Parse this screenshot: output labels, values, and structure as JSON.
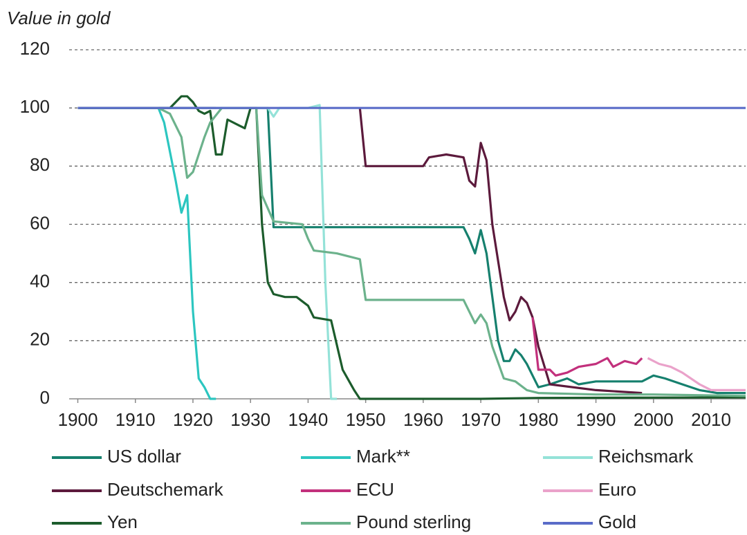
{
  "chart_data": {
    "type": "line",
    "y_label": "Value in gold",
    "xlim": [
      1898.5,
      2016
    ],
    "xticks": [
      1900,
      1910,
      1920,
      1930,
      1940,
      1950,
      1960,
      1970,
      1980,
      1990,
      2000,
      2010
    ],
    "ylim": [
      0,
      120
    ],
    "yticks": [
      0,
      20,
      40,
      60,
      80,
      100,
      120
    ],
    "grid": true,
    "series": [
      {
        "name": "US dollar",
        "color": "#16806e",
        "x": [
          1900,
          1933,
          1934,
          1967,
          1968,
          1969,
          1970,
          1971,
          1972,
          1973,
          1974,
          1975,
          1976,
          1977,
          1978,
          1979,
          1980,
          1982,
          1985,
          1987,
          1990,
          1995,
          1998,
          2000,
          2002,
          2005,
          2008,
          2011,
          2016
        ],
        "values": [
          100,
          100,
          59,
          59,
          55,
          50,
          58,
          50,
          35,
          20,
          13,
          13,
          17,
          15,
          12,
          8,
          4,
          5,
          7,
          5,
          6,
          6,
          6,
          8,
          7,
          5,
          3,
          2,
          2
        ]
      },
      {
        "name": "Mark**",
        "color": "#2cc6c0",
        "x": [
          1900,
          1914,
          1915,
          1917,
          1918,
          1919,
          1920,
          1921,
          1922,
          1923,
          1924
        ],
        "values": [
          100,
          100,
          95,
          75,
          64,
          70,
          30,
          7,
          4,
          0,
          0
        ]
      },
      {
        "name": "Reichsmark",
        "color": "#94e2d8",
        "x": [
          1924,
          1933,
          1934,
          1935,
          1940,
          1942,
          1943,
          1944,
          1945
        ],
        "values": [
          100,
          100,
          97,
          100,
          100,
          101,
          40,
          0,
          0
        ]
      },
      {
        "name": "Deutschemark",
        "color": "#5c1a3c",
        "x": [
          1949,
          1950,
          1960,
          1961,
          1964,
          1967,
          1968,
          1969,
          1970,
          1971,
          1972,
          1974,
          1975,
          1976,
          1977,
          1978,
          1979,
          1980,
          1982,
          1990,
          1998
        ],
        "values": [
          100,
          80,
          80,
          83,
          84,
          83,
          75,
          73,
          88,
          82,
          60,
          35,
          27,
          30,
          35,
          33,
          28,
          18,
          5,
          3,
          2
        ]
      },
      {
        "name": "ECU",
        "color": "#c2307c",
        "x": [
          1979,
          1980,
          1982,
          1983,
          1985,
          1987,
          1990,
          1992,
          1993,
          1995,
          1997,
          1998
        ],
        "values": [
          28,
          10,
          10,
          8,
          9,
          11,
          12,
          14,
          11,
          13,
          12,
          14
        ]
      },
      {
        "name": "Euro",
        "color": "#eaa2ca",
        "x": [
          1999,
          2001,
          2003,
          2005,
          2008,
          2010,
          2013,
          2016
        ],
        "values": [
          14,
          12,
          11,
          9,
          5,
          3,
          3,
          3
        ]
      },
      {
        "name": "Yen",
        "color": "#1c5c2c",
        "x": [
          1900,
          1916,
          1917,
          1918,
          1919,
          1920,
          1921,
          1922,
          1923,
          1924,
          1925,
          1926,
          1928,
          1929,
          1930,
          1931,
          1932,
          1933,
          1934,
          1936,
          1938,
          1940,
          1941,
          1944,
          1946,
          1948,
          1949,
          1970,
          1980,
          2016
        ],
        "values": [
          100,
          100,
          102,
          104,
          104,
          102,
          99,
          98,
          99,
          84,
          84,
          96,
          94,
          93,
          100,
          100,
          60,
          40,
          36,
          35,
          35,
          32,
          28,
          27,
          10,
          3,
          0,
          0,
          0.3,
          0.5
        ]
      },
      {
        "name": "Pound sterling",
        "color": "#6cb28c",
        "x": [
          1900,
          1914,
          1916,
          1918,
          1919,
          1920,
          1922,
          1923,
          1925,
          1931,
          1932,
          1934,
          1939,
          1940,
          1941,
          1945,
          1947,
          1949,
          1950,
          1967,
          1968,
          1969,
          1970,
          1971,
          1972,
          1974,
          1976,
          1978,
          1980,
          1990,
          2000,
          2016
        ],
        "values": [
          100,
          100,
          98,
          90,
          76,
          78,
          90,
          95,
          100,
          100,
          70,
          61,
          60,
          55,
          51,
          50,
          49,
          48,
          34,
          34,
          30,
          26,
          29,
          26,
          18,
          7,
          6,
          3,
          2,
          1.5,
          1.5,
          1
        ]
      },
      {
        "name": "Gold",
        "color": "#5a6cc8",
        "x": [
          1900,
          2016
        ],
        "values": [
          100,
          100
        ]
      }
    ]
  }
}
